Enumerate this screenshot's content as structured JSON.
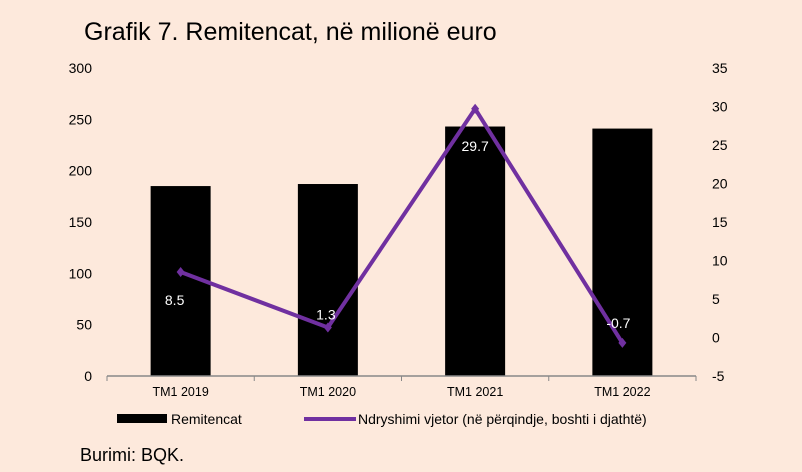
{
  "title": "Grafik 7. Remitencat, në milionë euro",
  "source": "Burimi: BQK.",
  "chart_data": {
    "type": "bar+line",
    "title": "Grafik 7. Remitencat, në milionë euro",
    "categories": [
      "TM1 2019",
      "TM1 2020",
      "TM1 2021",
      "TM1 2022"
    ],
    "series": [
      {
        "name": "Remitencat",
        "type": "bar",
        "axis": "left",
        "color": "#000000",
        "values": [
          185,
          187,
          243,
          241
        ]
      },
      {
        "name": "Ndryshimi vjetor (në përqindje, boshti i djathtë)",
        "type": "line",
        "axis": "right",
        "color": "#7030a0",
        "values": [
          8.5,
          1.3,
          29.7,
          -0.7
        ],
        "labels": [
          "8.5",
          "1.3",
          "29.7",
          "-0.7"
        ]
      }
    ],
    "ylim_left": [
      0,
      300
    ],
    "yticks_left": [
      "0",
      "50",
      "100",
      "150",
      "200",
      "250",
      "300"
    ],
    "ylim_right": [
      -5,
      35
    ],
    "yticks_right": [
      "-5",
      "0",
      "5",
      "10",
      "15",
      "20",
      "25",
      "30",
      "35"
    ],
    "legend": "bottom",
    "grid": false
  }
}
